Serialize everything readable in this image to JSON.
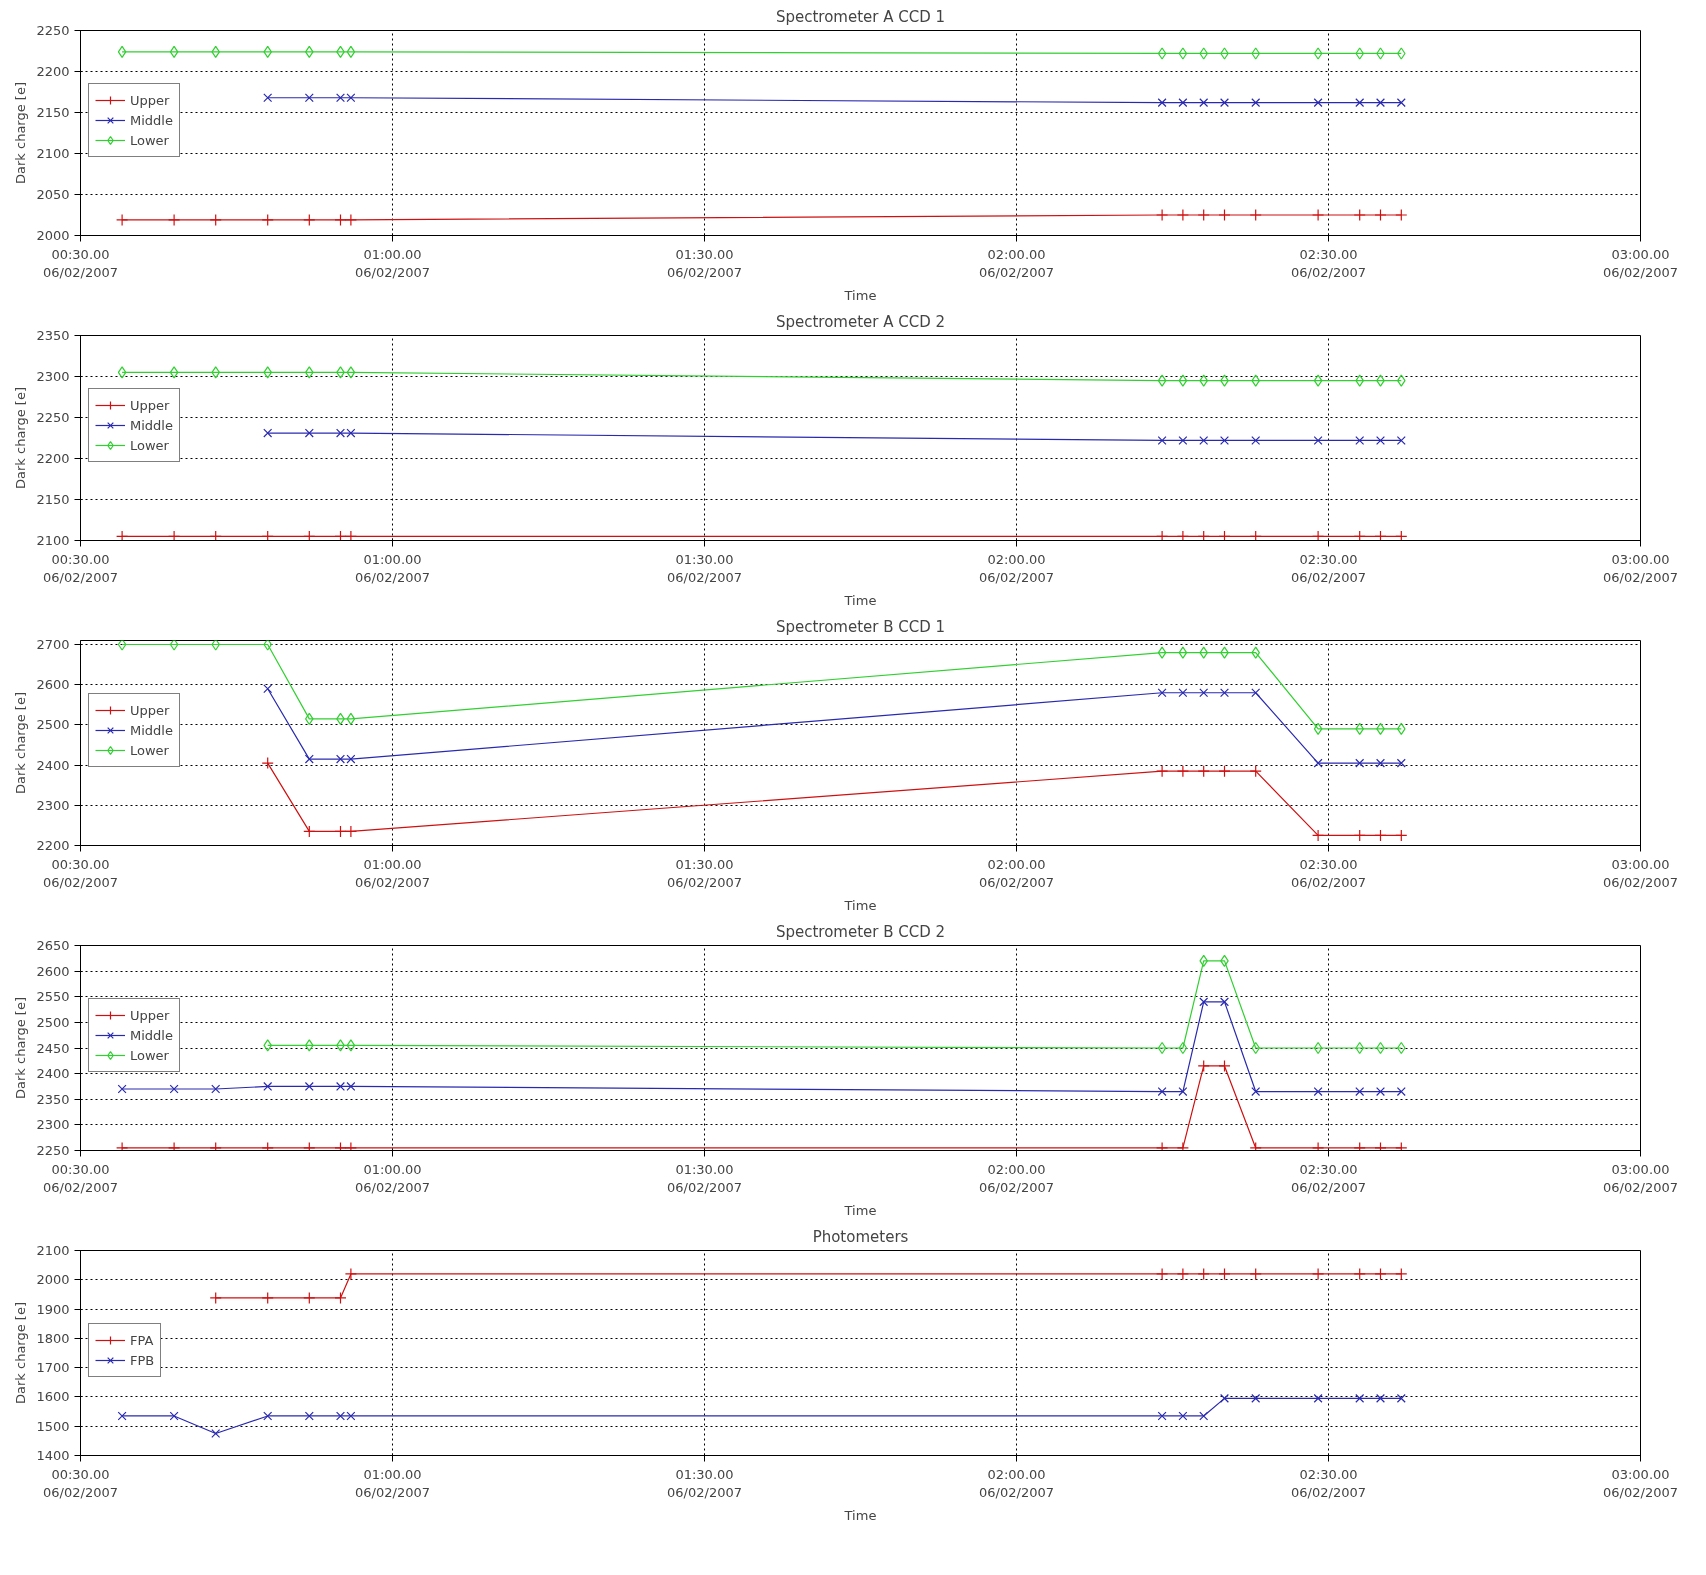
{
  "chart_data": [
    {
      "type": "line",
      "title": "Spectrometer A CCD 1",
      "xlabel": "Time",
      "ylabel": "Dark charge [e]",
      "x": [
        "2007-02-06T00:34",
        "2007-02-06T00:39",
        "2007-02-06T00:43",
        "2007-02-06T00:48",
        "2007-02-06T00:52",
        "2007-02-06T00:55",
        "2007-02-06T00:56",
        "2007-02-06T02:14",
        "2007-02-06T02:16",
        "2007-02-06T02:18",
        "2007-02-06T02:20",
        "2007-02-06T02:23",
        "2007-02-06T02:29",
        "2007-02-06T02:33",
        "2007-02-06T02:35",
        "2007-02-06T02:37"
      ],
      "xlim": [
        "2007-02-06T00:30",
        "2007-02-06T03:00"
      ],
      "xticks": [
        {
          "value": "2007-02-06T00:30",
          "label": "00:30.00\n06/02/2007"
        },
        {
          "value": "2007-02-06T01:00",
          "label": "01:00.00\n06/02/2007"
        },
        {
          "value": "2007-02-06T01:30",
          "label": "01:30.00\n06/02/2007"
        },
        {
          "value": "2007-02-06T02:00",
          "label": "02:00.00\n06/02/2007"
        },
        {
          "value": "2007-02-06T02:30",
          "label": "02:30.00\n06/02/2007"
        },
        {
          "value": "2007-02-06T03:00",
          "label": "03:00.00\n06/02/2007"
        }
      ],
      "ylim": [
        2000,
        2250
      ],
      "yticks": [
        2000,
        2050,
        2100,
        2150,
        2200,
        2250
      ],
      "grid": true,
      "legend": "top left",
      "series": [
        {
          "name": "Upper",
          "color": "#d01010",
          "marker": "cross",
          "values": [
            2019,
            2019,
            2019,
            2019,
            2019,
            2019,
            2019,
            2025,
            2025,
            2025,
            2025,
            2025,
            2025,
            2025,
            2025,
            2025
          ]
        },
        {
          "name": "Middle",
          "color": "#2a2ab0",
          "marker": "x",
          "values": [
            null,
            null,
            null,
            2168,
            2168,
            2168,
            2168,
            2162,
            2162,
            2162,
            2162,
            2162,
            2162,
            2162,
            2162,
            2162
          ]
        },
        {
          "name": "Lower",
          "color": "#30d030",
          "marker": "diamond",
          "values": [
            2224,
            2224,
            2224,
            2224,
            2224,
            2224,
            2224,
            2222,
            2222,
            2222,
            2222,
            2222,
            2222,
            2222,
            2222,
            2222
          ]
        }
      ]
    },
    {
      "type": "line",
      "title": "Spectrometer A CCD 2",
      "xlabel": "Time",
      "ylabel": "Dark charge [e]",
      "x": [
        "2007-02-06T00:34",
        "2007-02-06T00:39",
        "2007-02-06T00:43",
        "2007-02-06T00:48",
        "2007-02-06T00:52",
        "2007-02-06T00:55",
        "2007-02-06T00:56",
        "2007-02-06T02:14",
        "2007-02-06T02:16",
        "2007-02-06T02:18",
        "2007-02-06T02:20",
        "2007-02-06T02:23",
        "2007-02-06T02:29",
        "2007-02-06T02:33",
        "2007-02-06T02:35",
        "2007-02-06T02:37"
      ],
      "xlim": [
        "2007-02-06T00:30",
        "2007-02-06T03:00"
      ],
      "xticks": [
        {
          "value": "2007-02-06T00:30",
          "label": "00:30.00\n06/02/2007"
        },
        {
          "value": "2007-02-06T01:00",
          "label": "01:00.00\n06/02/2007"
        },
        {
          "value": "2007-02-06T01:30",
          "label": "01:30.00\n06/02/2007"
        },
        {
          "value": "2007-02-06T02:00",
          "label": "02:00.00\n06/02/2007"
        },
        {
          "value": "2007-02-06T02:30",
          "label": "02:30.00\n06/02/2007"
        },
        {
          "value": "2007-02-06T03:00",
          "label": "03:00.00\n06/02/2007"
        }
      ],
      "ylim": [
        2100,
        2350
      ],
      "yticks": [
        2100,
        2150,
        2200,
        2250,
        2300,
        2350
      ],
      "grid": true,
      "legend": "top left",
      "series": [
        {
          "name": "Upper",
          "color": "#d01010",
          "marker": "cross",
          "values": [
            2105,
            2105,
            2105,
            2105,
            2105,
            2105,
            2105,
            2105,
            2105,
            2105,
            2105,
            2105,
            2105,
            2105,
            2105,
            2105
          ]
        },
        {
          "name": "Middle",
          "color": "#2a2ab0",
          "marker": "x",
          "values": [
            null,
            null,
            null,
            2231,
            2231,
            2231,
            2231,
            2222,
            2222,
            2222,
            2222,
            2222,
            2222,
            2222,
            2222,
            2222
          ]
        },
        {
          "name": "Lower",
          "color": "#30d030",
          "marker": "diamond",
          "values": [
            2305,
            2305,
            2305,
            2305,
            2305,
            2305,
            2305,
            2295,
            2295,
            2295,
            2295,
            2295,
            2295,
            2295,
            2295,
            2295
          ]
        }
      ]
    },
    {
      "type": "line",
      "title": "Spectrometer B CCD 1",
      "xlabel": "Time",
      "ylabel": "Dark charge [e]",
      "x": [
        "2007-02-06T00:34",
        "2007-02-06T00:39",
        "2007-02-06T00:43",
        "2007-02-06T00:48",
        "2007-02-06T00:52",
        "2007-02-06T00:55",
        "2007-02-06T00:56",
        "2007-02-06T02:14",
        "2007-02-06T02:16",
        "2007-02-06T02:18",
        "2007-02-06T02:20",
        "2007-02-06T02:23",
        "2007-02-06T02:29",
        "2007-02-06T02:33",
        "2007-02-06T02:35",
        "2007-02-06T02:37"
      ],
      "xlim": [
        "2007-02-06T00:30",
        "2007-02-06T03:00"
      ],
      "xticks": [
        {
          "value": "2007-02-06T00:30",
          "label": "00:30.00\n06/02/2007"
        },
        {
          "value": "2007-02-06T01:00",
          "label": "01:00.00\n06/02/2007"
        },
        {
          "value": "2007-02-06T01:30",
          "label": "01:30.00\n06/02/2007"
        },
        {
          "value": "2007-02-06T02:00",
          "label": "02:00.00\n06/02/2007"
        },
        {
          "value": "2007-02-06T02:30",
          "label": "02:30.00\n06/02/2007"
        },
        {
          "value": "2007-02-06T03:00",
          "label": "03:00.00\n06/02/2007"
        }
      ],
      "ylim": [
        2200,
        2710
      ],
      "yticks": [
        2200,
        2300,
        2400,
        2500,
        2600,
        2700
      ],
      "grid": true,
      "legend": "top left",
      "series": [
        {
          "name": "Upper",
          "color": "#d01010",
          "marker": "cross",
          "values": [
            null,
            null,
            null,
            2405,
            2235,
            2235,
            2235,
            2385,
            2385,
            2385,
            2385,
            2385,
            2225,
            2225,
            2225,
            2225
          ]
        },
        {
          "name": "Middle",
          "color": "#2a2ab0",
          "marker": "x",
          "values": [
            null,
            null,
            null,
            2590,
            2415,
            2415,
            2415,
            2580,
            2580,
            2580,
            2580,
            2580,
            2405,
            2405,
            2405,
            2405
          ]
        },
        {
          "name": "Lower",
          "color": "#30d030",
          "marker": "diamond",
          "values": [
            2700,
            2700,
            2700,
            2700,
            2515,
            2515,
            2515,
            2680,
            2680,
            2680,
            2680,
            2680,
            2490,
            2490,
            2490,
            2490
          ]
        }
      ]
    },
    {
      "type": "line",
      "title": "Spectrometer B CCD 2",
      "xlabel": "Time",
      "ylabel": "Dark charge [e]",
      "x": [
        "2007-02-06T00:34",
        "2007-02-06T00:39",
        "2007-02-06T00:43",
        "2007-02-06T00:48",
        "2007-02-06T00:52",
        "2007-02-06T00:55",
        "2007-02-06T00:56",
        "2007-02-06T02:14",
        "2007-02-06T02:16",
        "2007-02-06T02:18",
        "2007-02-06T02:20",
        "2007-02-06T02:23",
        "2007-02-06T02:29",
        "2007-02-06T02:33",
        "2007-02-06T02:35",
        "2007-02-06T02:37"
      ],
      "xlim": [
        "2007-02-06T00:30",
        "2007-02-06T03:00"
      ],
      "xticks": [
        {
          "value": "2007-02-06T00:30",
          "label": "00:30.00\n06/02/2007"
        },
        {
          "value": "2007-02-06T01:00",
          "label": "01:00.00\n06/02/2007"
        },
        {
          "value": "2007-02-06T01:30",
          "label": "01:30.00\n06/02/2007"
        },
        {
          "value": "2007-02-06T02:00",
          "label": "02:00.00\n06/02/2007"
        },
        {
          "value": "2007-02-06T02:30",
          "label": "02:30.00\n06/02/2007"
        },
        {
          "value": "2007-02-06T03:00",
          "label": "03:00.00\n06/02/2007"
        }
      ],
      "ylim": [
        2250,
        2650
      ],
      "yticks": [
        2250,
        2300,
        2350,
        2400,
        2450,
        2500,
        2550,
        2600,
        2650
      ],
      "grid": true,
      "legend": "top left",
      "series": [
        {
          "name": "Upper",
          "color": "#d01010",
          "marker": "cross",
          "values": [
            2255,
            2255,
            2255,
            2255,
            2255,
            2255,
            2255,
            2255,
            2255,
            2415,
            2415,
            2255,
            2255,
            2255,
            2255,
            2255
          ]
        },
        {
          "name": "Middle",
          "color": "#2a2ab0",
          "marker": "x",
          "values": [
            2370,
            2370,
            2370,
            2375,
            2375,
            2375,
            2375,
            2365,
            2365,
            2540,
            2540,
            2365,
            2365,
            2365,
            2365,
            2365
          ]
        },
        {
          "name": "Lower",
          "color": "#30d030",
          "marker": "diamond",
          "values": [
            null,
            null,
            null,
            2455,
            2455,
            2455,
            2455,
            2450,
            2450,
            2620,
            2620,
            2450,
            2450,
            2450,
            2450,
            2450
          ]
        }
      ]
    },
    {
      "type": "line",
      "title": "Photometers",
      "xlabel": "Time",
      "ylabel": "Dark charge [e]",
      "x": [
        "2007-02-06T00:34",
        "2007-02-06T00:39",
        "2007-02-06T00:43",
        "2007-02-06T00:48",
        "2007-02-06T00:52",
        "2007-02-06T00:55",
        "2007-02-06T00:56",
        "2007-02-06T02:14",
        "2007-02-06T02:16",
        "2007-02-06T02:18",
        "2007-02-06T02:20",
        "2007-02-06T02:23",
        "2007-02-06T02:29",
        "2007-02-06T02:33",
        "2007-02-06T02:35",
        "2007-02-06T02:37"
      ],
      "xlim": [
        "2007-02-06T00:30",
        "2007-02-06T03:00"
      ],
      "xticks": [
        {
          "value": "2007-02-06T00:30",
          "label": "00:30.00\n06/02/2007"
        },
        {
          "value": "2007-02-06T01:00",
          "label": "01:00.00\n06/02/2007"
        },
        {
          "value": "2007-02-06T01:30",
          "label": "01:30.00\n06/02/2007"
        },
        {
          "value": "2007-02-06T02:00",
          "label": "02:00.00\n06/02/2007"
        },
        {
          "value": "2007-02-06T02:30",
          "label": "02:30.00\n06/02/2007"
        },
        {
          "value": "2007-02-06T03:00",
          "label": "03:00.00\n06/02/2007"
        }
      ],
      "ylim": [
        1400,
        2100
      ],
      "yticks": [
        1400,
        1500,
        1600,
        1700,
        1800,
        1900,
        2000,
        2100
      ],
      "grid": true,
      "legend": "top left",
      "series": [
        {
          "name": "FPA",
          "color": "#d01010",
          "marker": "cross",
          "values": [
            null,
            null,
            1938,
            1938,
            1938,
            1938,
            2020,
            2020,
            2020,
            2020,
            2020,
            2020,
            2020,
            2020,
            2020,
            2020
          ]
        },
        {
          "name": "FPB",
          "color": "#2a2ab0",
          "marker": "x",
          "values": [
            1535,
            1535,
            1475,
            1535,
            1535,
            1535,
            1535,
            1535,
            1535,
            1535,
            1595,
            1595,
            1595,
            1595,
            1595,
            1595
          ]
        }
      ]
    }
  ]
}
